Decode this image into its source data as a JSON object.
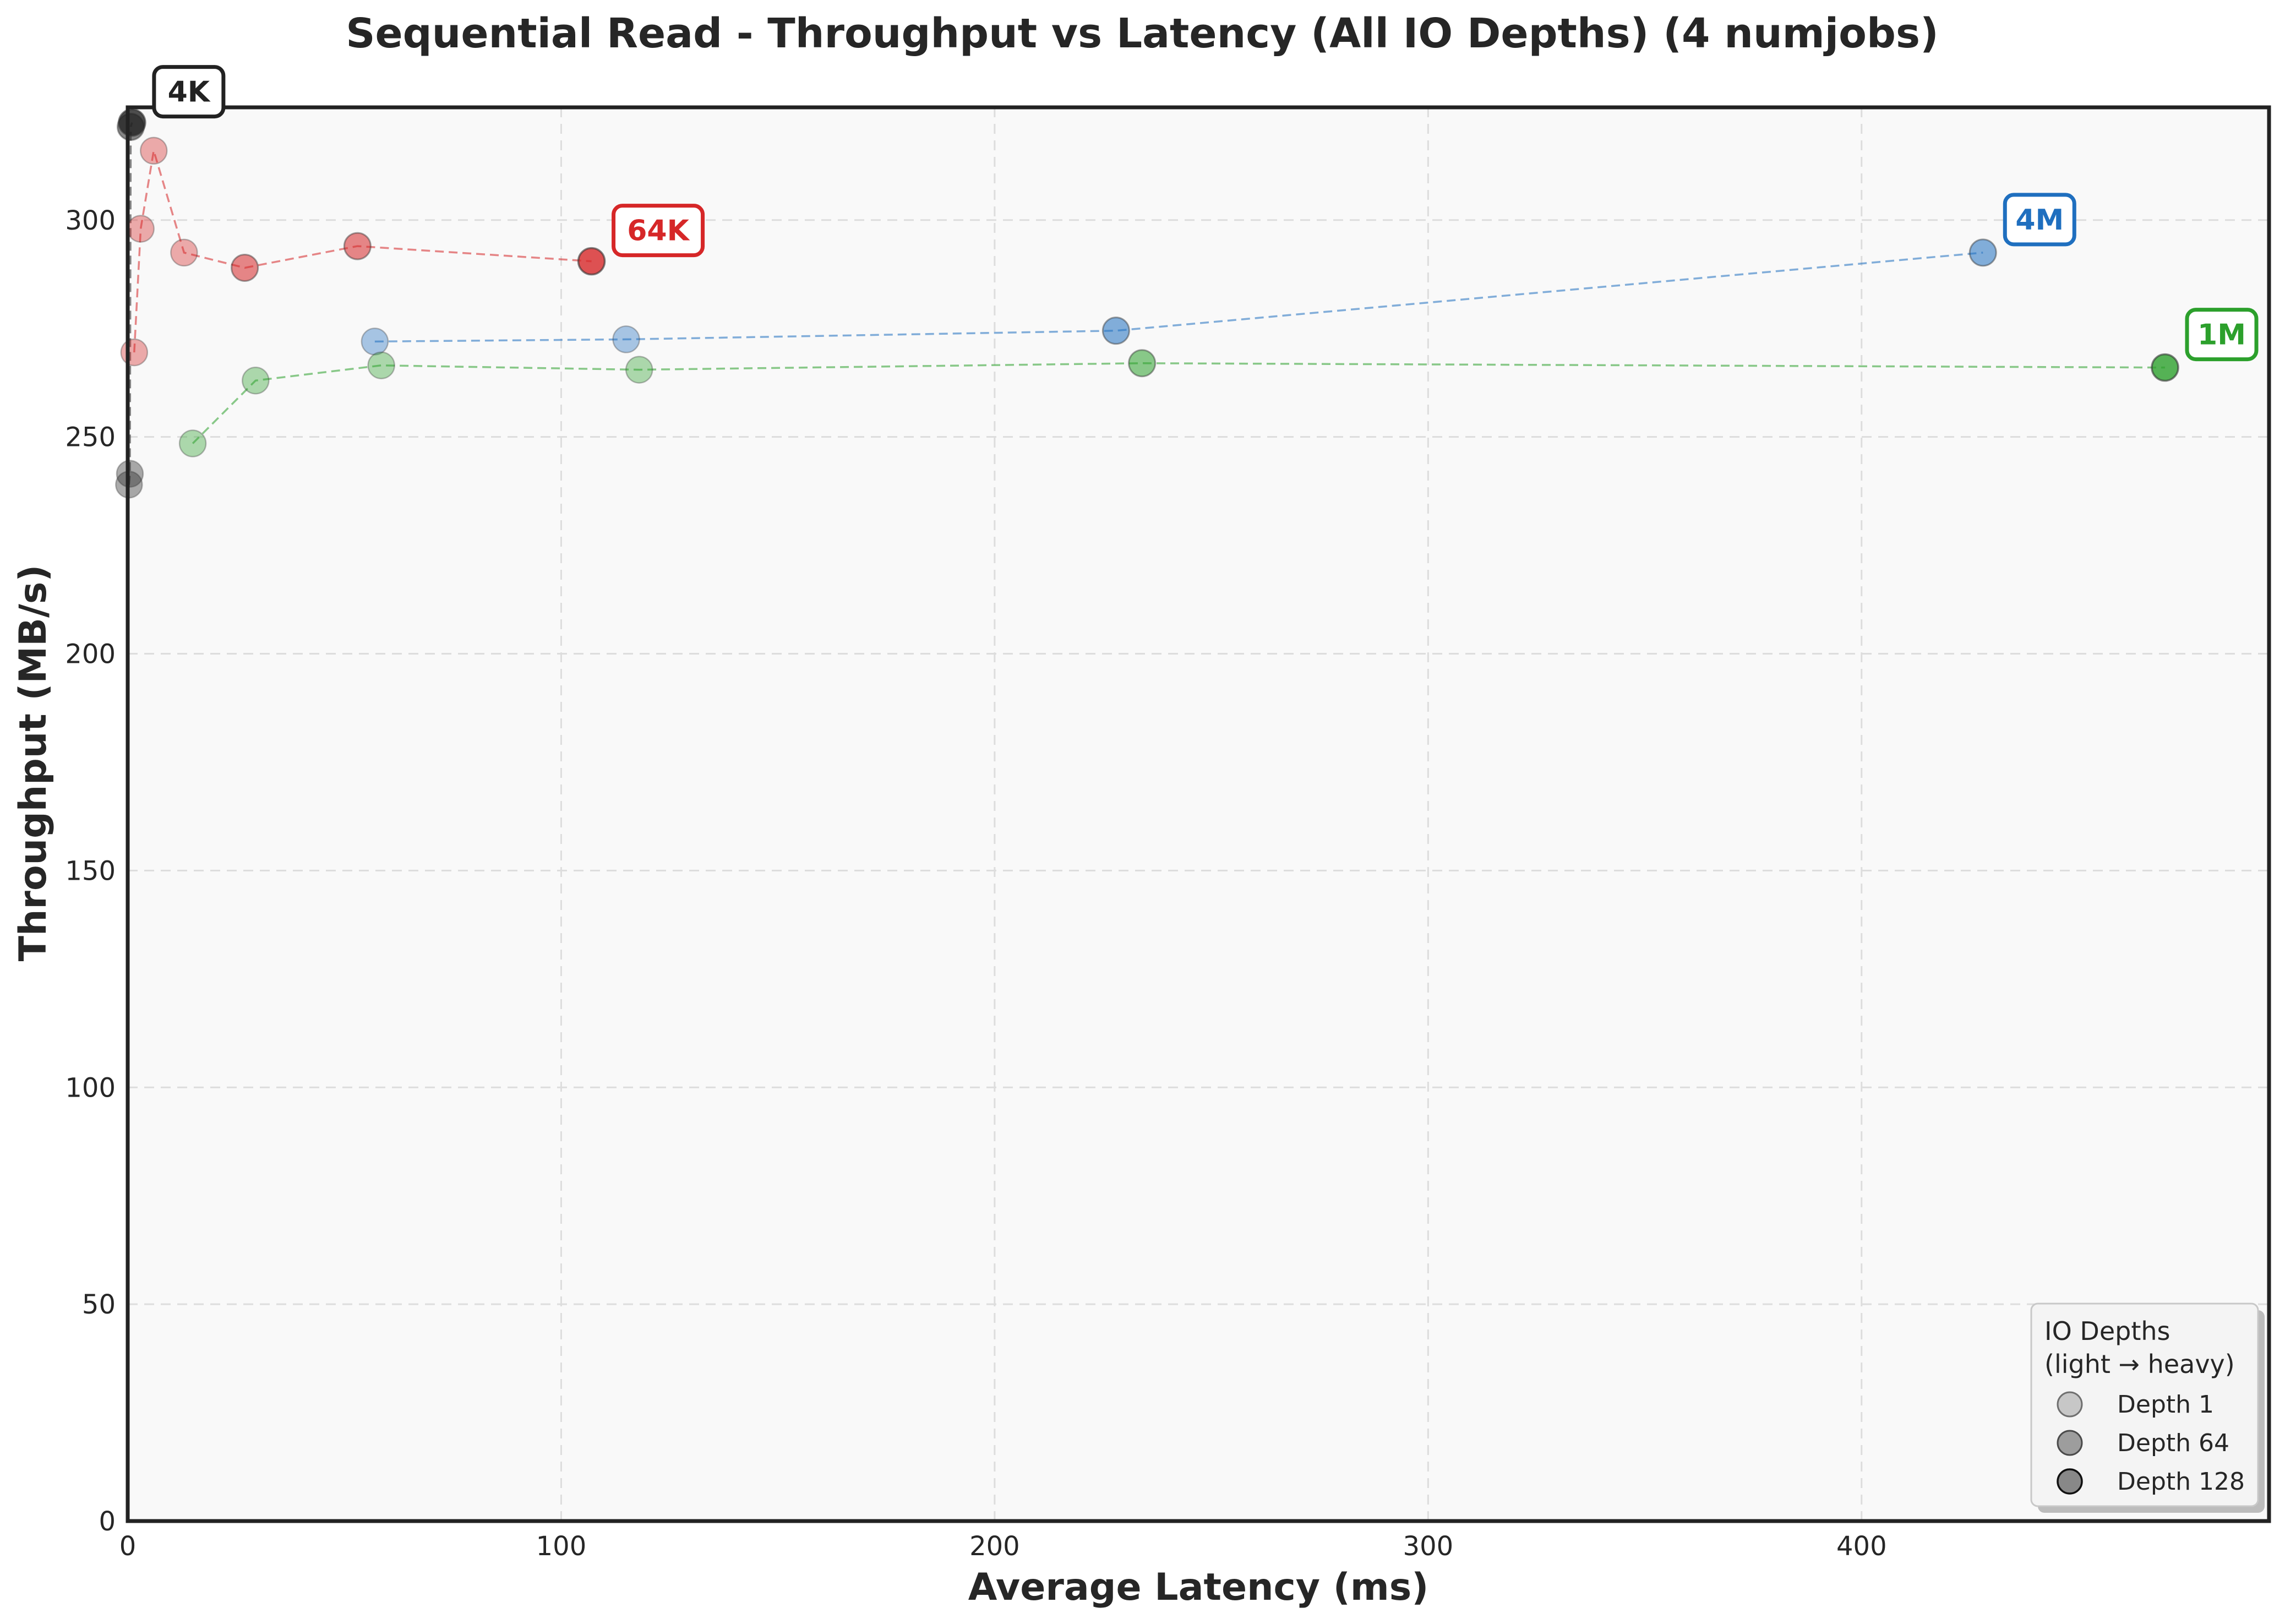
{
  "chart_data": {
    "type": "scatter",
    "title": "Sequential Read - Throughput vs Latency (All IO Depths) (4 numjobs)",
    "xlabel": "Average Latency (ms)",
    "ylabel": "Throughput (MB/s)",
    "xlim": [
      0,
      494
    ],
    "ylim": [
      0,
      326
    ],
    "xticks": [
      0,
      100,
      200,
      300,
      400
    ],
    "yticks": [
      0,
      50,
      100,
      150,
      200,
      250,
      300
    ],
    "grid": true,
    "lines": "dashed, connecting points of each series",
    "series": [
      {
        "name": "4K",
        "color": "#222222",
        "points": [
          {
            "x": 0.3,
            "y": 239,
            "depth": "light"
          },
          {
            "x": 0.5,
            "y": 241.5,
            "depth": "light"
          },
          {
            "x": 0.7,
            "y": 321.5,
            "depth": "medium"
          },
          {
            "x": 1.0,
            "y": 322.5,
            "depth": "heavy"
          }
        ]
      },
      {
        "name": "64K",
        "color": "#d62728",
        "points": [
          {
            "x": 1.5,
            "y": 269.5,
            "depth": "light"
          },
          {
            "x": 3.0,
            "y": 298,
            "depth": "light"
          },
          {
            "x": 6.0,
            "y": 316,
            "depth": "light"
          },
          {
            "x": 13.0,
            "y": 292.5,
            "depth": "light"
          },
          {
            "x": 27.0,
            "y": 289,
            "depth": "medium"
          },
          {
            "x": 53.0,
            "y": 294,
            "depth": "medium"
          },
          {
            "x": 107.0,
            "y": 290.5,
            "depth": "heavy"
          }
        ]
      },
      {
        "name": "4M",
        "color": "#1f6fbf",
        "points": [
          {
            "x": 57.0,
            "y": 272,
            "depth": "light"
          },
          {
            "x": 115.0,
            "y": 272.5,
            "depth": "light"
          },
          {
            "x": 228.0,
            "y": 274.5,
            "depth": "medium"
          },
          {
            "x": 428.0,
            "y": 292.5,
            "depth": "medium"
          }
        ]
      },
      {
        "name": "1M",
        "color": "#2ca02c",
        "points": [
          {
            "x": 15.0,
            "y": 248.5,
            "depth": "light"
          },
          {
            "x": 29.5,
            "y": 263,
            "depth": "light"
          },
          {
            "x": 58.5,
            "y": 266.5,
            "depth": "light"
          },
          {
            "x": 118.0,
            "y": 265.5,
            "depth": "light"
          },
          {
            "x": 234.0,
            "y": 267,
            "depth": "medium"
          },
          {
            "x": 470.0,
            "y": 266,
            "depth": "heavy"
          }
        ]
      }
    ],
    "legend": {
      "position": "bottom-right",
      "title_line1": "IO Depths",
      "title_line2": "(light → heavy)",
      "entries": [
        {
          "label": "Depth 1",
          "shade": "light"
        },
        {
          "label": "Depth 64",
          "shade": "medium"
        },
        {
          "label": "Depth 128",
          "shade": "heavy"
        }
      ]
    }
  }
}
